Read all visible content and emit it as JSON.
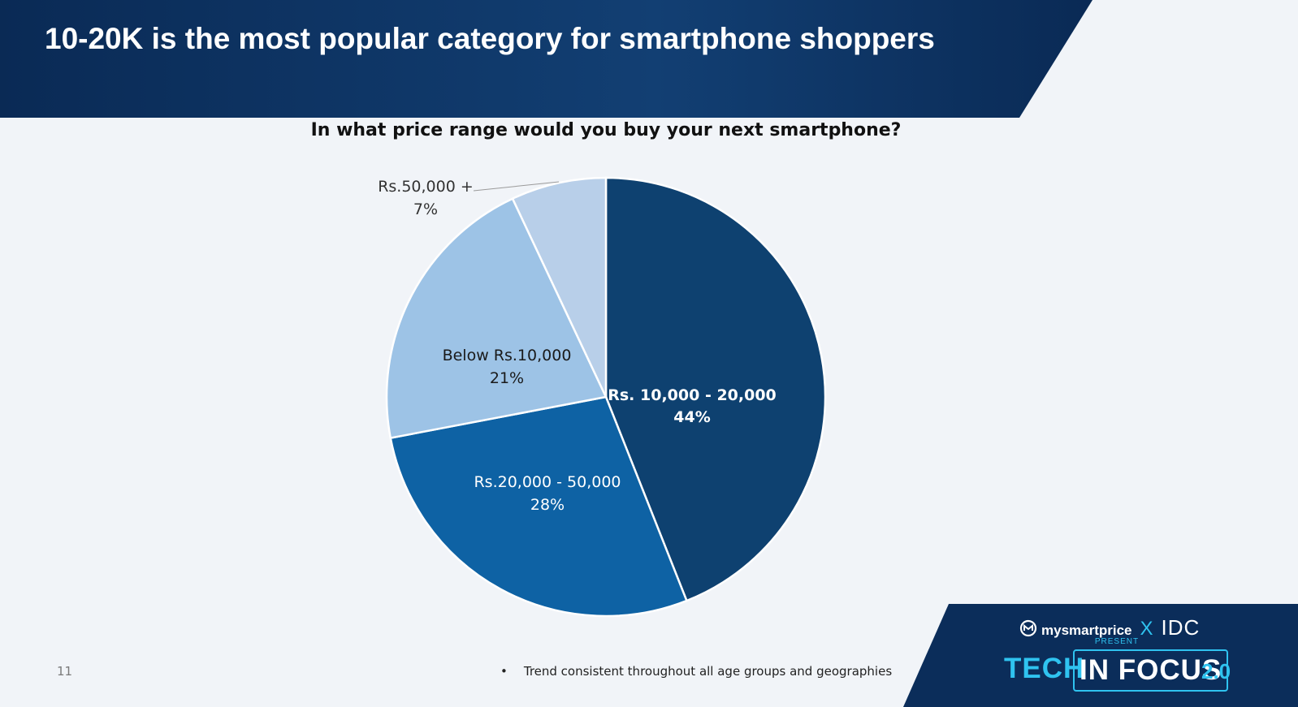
{
  "slide": {
    "title": "10-20K is the most popular category for smartphone shoppers",
    "page_number": "11",
    "footnote": "Trend consistent throughout all age groups and geographies"
  },
  "branding": {
    "partner_1": "mysmartprice",
    "separator": "X",
    "partner_2": "IDC",
    "present": "PRESENT",
    "event_part_1": "TECH",
    "event_part_2": "IN FOCUS",
    "event_version": "2.0"
  },
  "colors": {
    "header_dark": "#0b2d5a",
    "slice_10_20k": "#0e4170",
    "slice_20_50k": "#0e62a4",
    "slice_below_10k": "#9dc3e6",
    "slice_50k_plus": "#b8cfe9",
    "accent": "#2fc3f0"
  },
  "chart_data": {
    "type": "pie",
    "title": "In what price range would you buy your next smartphone?",
    "slices": [
      {
        "name": "Rs. 10,000 - 20,000",
        "value": 44,
        "label": "44%",
        "color": "#0e4170",
        "text_color": "#ffffff",
        "bold": true
      },
      {
        "name": "Rs.20,000 - 50,000",
        "value": 28,
        "label": "28%",
        "color": "#0e62a4",
        "text_color": "#ffffff",
        "bold": false
      },
      {
        "name": "Below Rs.10,000",
        "value": 21,
        "label": "21%",
        "color": "#9dc3e6",
        "text_color": "#1a1a1a",
        "bold": false
      },
      {
        "name": "Rs.50,000 +",
        "value": 7,
        "label": "7%",
        "color": "#b8cfe9",
        "text_color": "#333333",
        "bold": false
      }
    ],
    "start_angle": "12 o'clock",
    "direction": "clockwise",
    "legend": "none"
  }
}
